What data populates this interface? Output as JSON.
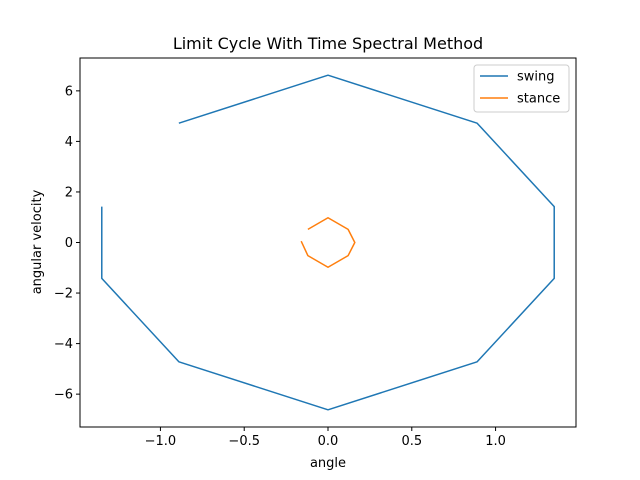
{
  "chart_data": {
    "type": "line",
    "title": "Limit Cycle With Time Spectral Method",
    "xlabel": "angle",
    "ylabel": "angular velocity",
    "xlim": [
      -1.48,
      1.48
    ],
    "ylim": [
      -7.3,
      7.3
    ],
    "xticks": [
      -1.0,
      -0.5,
      0.0,
      0.5,
      1.0
    ],
    "xtick_labels": [
      "−1.0",
      "−0.5",
      "0.0",
      "0.5",
      "1.0"
    ],
    "yticks": [
      -6,
      -4,
      -2,
      0,
      2,
      4,
      6
    ],
    "ytick_labels": [
      "−6",
      "−4",
      "−2",
      "0",
      "2",
      "4",
      "6"
    ],
    "grid": false,
    "legend_position": "top-right",
    "series": [
      {
        "name": "swing",
        "color": "#1f77b4",
        "x": [
          -0.89,
          0.0,
          0.89,
          1.35,
          1.35,
          0.89,
          0.0,
          -0.89,
          -1.35,
          -1.35
        ],
        "y": [
          4.72,
          6.62,
          4.72,
          1.42,
          -1.42,
          -4.72,
          -6.62,
          -4.72,
          -1.42,
          1.42
        ]
      },
      {
        "name": "stance",
        "color": "#ff7f0e",
        "x": [
          -0.12,
          0.0,
          0.12,
          0.16,
          0.12,
          0.0,
          -0.12,
          -0.16
        ],
        "y": [
          0.52,
          0.98,
          0.52,
          0.0,
          -0.52,
          -0.98,
          -0.52,
          0.05
        ]
      }
    ]
  }
}
